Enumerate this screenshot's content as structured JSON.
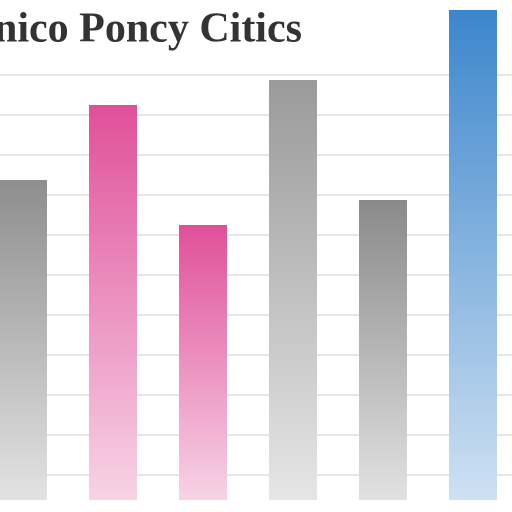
{
  "chart_data": {
    "type": "bar",
    "title": "nico Poncy Citics",
    "categories": [
      null,
      null,
      null,
      null,
      null,
      null
    ],
    "values": [
      64,
      79,
      55,
      84,
      60,
      98
    ],
    "colors": [
      "#8e8e8e",
      "#e0509a",
      "#e0509a",
      "#9a9a9a",
      "#8a8a8a",
      "#3d86cc"
    ],
    "ylim": [
      0,
      100
    ],
    "grid": true
  }
}
